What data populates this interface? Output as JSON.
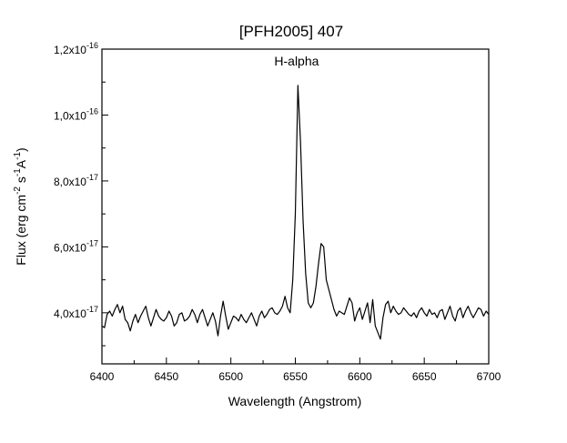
{
  "chart_data": {
    "type": "line",
    "title": "[PFH2005] 407",
    "xlabel": "Wavelength (Angstrom)",
    "ylabel": "Flux (erg cm-2 s-1A-1)",
    "ylabel_parts": [
      "Flux (erg cm",
      "-2",
      " s",
      "-1",
      "A",
      "-1",
      ")"
    ],
    "xlim": [
      6400,
      6700
    ],
    "ylim": [
      2.45e-17,
      1.2e-16
    ],
    "x_ticks": [
      6400,
      6450,
      6500,
      6550,
      6600,
      6650,
      6700
    ],
    "x_tick_labels": [
      "6400",
      "6450",
      "6500",
      "6550",
      "6600",
      "6650",
      "6700"
    ],
    "y_ticks": [
      {
        "value": 4e-17,
        "mantissa": "4,0x10",
        "exp": "-17"
      },
      {
        "value": 6e-17,
        "mantissa": "6,0x10",
        "exp": "-17"
      },
      {
        "value": 8e-17,
        "mantissa": "8,0x10",
        "exp": "-17"
      },
      {
        "value": 1e-16,
        "mantissa": "1,0x10",
        "exp": "-16"
      },
      {
        "value": 1.2e-16,
        "mantissa": "1,2x10",
        "exp": "-16"
      }
    ],
    "annotations": [
      {
        "text": "H-alpha",
        "x": 6551,
        "y": 1.15e-16
      }
    ],
    "grid": false,
    "legend": "none",
    "line_color": "#000000",
    "series": [
      {
        "x": [
          6400,
          6402,
          6404,
          6406,
          6408,
          6410,
          6412,
          6414,
          6416,
          6418,
          6420,
          6422,
          6424,
          6426,
          6428,
          6430,
          6432,
          6434,
          6436,
          6438,
          6440,
          6442,
          6444,
          6446,
          6448,
          6450,
          6452,
          6454,
          6456,
          6458,
          6460,
          6462,
          6464,
          6466,
          6468,
          6470,
          6472,
          6474,
          6476,
          6478,
          6480,
          6482,
          6484,
          6486,
          6488,
          6490,
          6492,
          6494,
          6496,
          6498,
          6500,
          6502,
          6504,
          6506,
          6508,
          6510,
          6512,
          6514,
          6516,
          6518,
          6520,
          6522,
          6524,
          6526,
          6528,
          6530,
          6532,
          6534,
          6536,
          6538,
          6540,
          6542,
          6544,
          6546,
          6548,
          6550,
          6552,
          6554,
          6556,
          6558,
          6560,
          6562,
          6564,
          6566,
          6568,
          6570,
          6572,
          6574,
          6576,
          6578,
          6580,
          6582,
          6584,
          6586,
          6588,
          6590,
          6592,
          6594,
          6596,
          6598,
          6600,
          6602,
          6604,
          6606,
          6608,
          6610,
          6612,
          6614,
          6616,
          6618,
          6620,
          6622,
          6624,
          6626,
          6628,
          6630,
          6632,
          6634,
          6636,
          6638,
          6640,
          6642,
          6644,
          6646,
          6648,
          6650,
          6652,
          6654,
          6656,
          6658,
          6660,
          6662,
          6664,
          6666,
          6668,
          6670,
          6672,
          6674,
          6676,
          6678,
          6680,
          6682,
          6684,
          6686,
          6688,
          6690,
          6692,
          6694,
          6696,
          6698,
          6700
        ],
        "values": [
          3.6e-17,
          3.55e-17,
          3.95e-17,
          4.05e-17,
          3.9e-17,
          4.1e-17,
          4.25e-17,
          4e-17,
          4.2e-17,
          3.8e-17,
          3.7e-17,
          3.45e-17,
          3.75e-17,
          3.95e-17,
          3.7e-17,
          3.9e-17,
          4.05e-17,
          4.2e-17,
          3.85e-17,
          3.6e-17,
          3.85e-17,
          4.1e-17,
          3.9e-17,
          3.8e-17,
          3.75e-17,
          3.85e-17,
          4.05e-17,
          3.9e-17,
          3.6e-17,
          3.7e-17,
          3.95e-17,
          4e-17,
          3.75e-17,
          3.8e-17,
          3.9e-17,
          4.1e-17,
          3.95e-17,
          3.7e-17,
          3.95e-17,
          4.1e-17,
          3.85e-17,
          3.6e-17,
          3.8e-17,
          4e-17,
          3.75e-17,
          3.3e-17,
          3.9e-17,
          4.35e-17,
          3.9e-17,
          3.5e-17,
          3.7e-17,
          3.9e-17,
          3.85e-17,
          3.75e-17,
          3.95e-17,
          3.8e-17,
          3.7e-17,
          3.85e-17,
          4e-17,
          3.8e-17,
          3.6e-17,
          3.9e-17,
          4.05e-17,
          3.85e-17,
          3.95e-17,
          4.1e-17,
          4.15e-17,
          4e-17,
          3.95e-17,
          4.05e-17,
          4.2e-17,
          4.5e-17,
          4.15e-17,
          4e-17,
          5e-17,
          7e-17,
          1.09e-16,
          9.2e-17,
          6.8e-17,
          5.2e-17,
          4.3e-17,
          4.15e-17,
          4.3e-17,
          4.8e-17,
          5.5e-17,
          6.1e-17,
          6e-17,
          5e-17,
          4.7e-17,
          4.4e-17,
          4.1e-17,
          3.9e-17,
          4.05e-17,
          4e-17,
          3.95e-17,
          4.2e-17,
          4.45e-17,
          4.3e-17,
          3.75e-17,
          4e-17,
          4.15e-17,
          3.8e-17,
          4.05e-17,
          4.3e-17,
          3.7e-17,
          4.4e-17,
          3.6e-17,
          3.4e-17,
          3.2e-17,
          3.85e-17,
          4.25e-17,
          4.35e-17,
          4e-17,
          4.2e-17,
          4.05e-17,
          3.95e-17,
          4e-17,
          4.15e-17,
          4.05e-17,
          3.95e-17,
          3.9e-17,
          4e-17,
          3.85e-17,
          4.05e-17,
          4.15e-17,
          4e-17,
          3.9e-17,
          4.1e-17,
          3.95e-17,
          4e-17,
          3.85e-17,
          4.05e-17,
          4.1e-17,
          3.8e-17,
          4e-17,
          4.2e-17,
          3.9e-17,
          3.75e-17,
          4.05e-17,
          4.15e-17,
          3.85e-17,
          4.05e-17,
          4.2e-17,
          4e-17,
          3.85e-17,
          4e-17,
          4.15e-17,
          4.1e-17,
          3.9e-17,
          4.05e-17,
          3.95e-17
        ]
      }
    ]
  }
}
